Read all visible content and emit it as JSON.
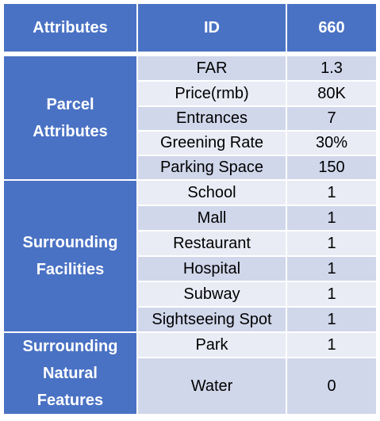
{
  "header": {
    "col1": "Attributes",
    "col2": "ID",
    "col3": "660"
  },
  "groups": [
    {
      "label": "Parcel\nAttributes",
      "rows": [
        {
          "attribute": "FAR",
          "value": "1.3"
        },
        {
          "attribute": "Price(rmb)",
          "value": "80K"
        },
        {
          "attribute": "Entrances",
          "value": "7"
        },
        {
          "attribute": "Greening Rate",
          "value": "30%"
        },
        {
          "attribute": "Parking Space",
          "value": "150"
        }
      ]
    },
    {
      "label": "Surrounding\nFacilities",
      "rows": [
        {
          "attribute": "School",
          "value": "1"
        },
        {
          "attribute": "Mall",
          "value": "1"
        },
        {
          "attribute": "Restaurant",
          "value": "1"
        },
        {
          "attribute": "Hospital",
          "value": "1"
        },
        {
          "attribute": "Subway",
          "value": "1"
        },
        {
          "attribute": "Sightseeing Spot",
          "value": "1"
        }
      ]
    },
    {
      "label": "Surrounding\nNatural\nFeatures",
      "rows": [
        {
          "attribute": "Park",
          "value": "1"
        },
        {
          "attribute": "Water",
          "value": "0"
        }
      ]
    }
  ],
  "colors": {
    "header_bg": "#4a72c4",
    "row_dark": "#d0d7eb",
    "row_light": "#e9ecf5",
    "text_on_header": "#ffffff"
  }
}
